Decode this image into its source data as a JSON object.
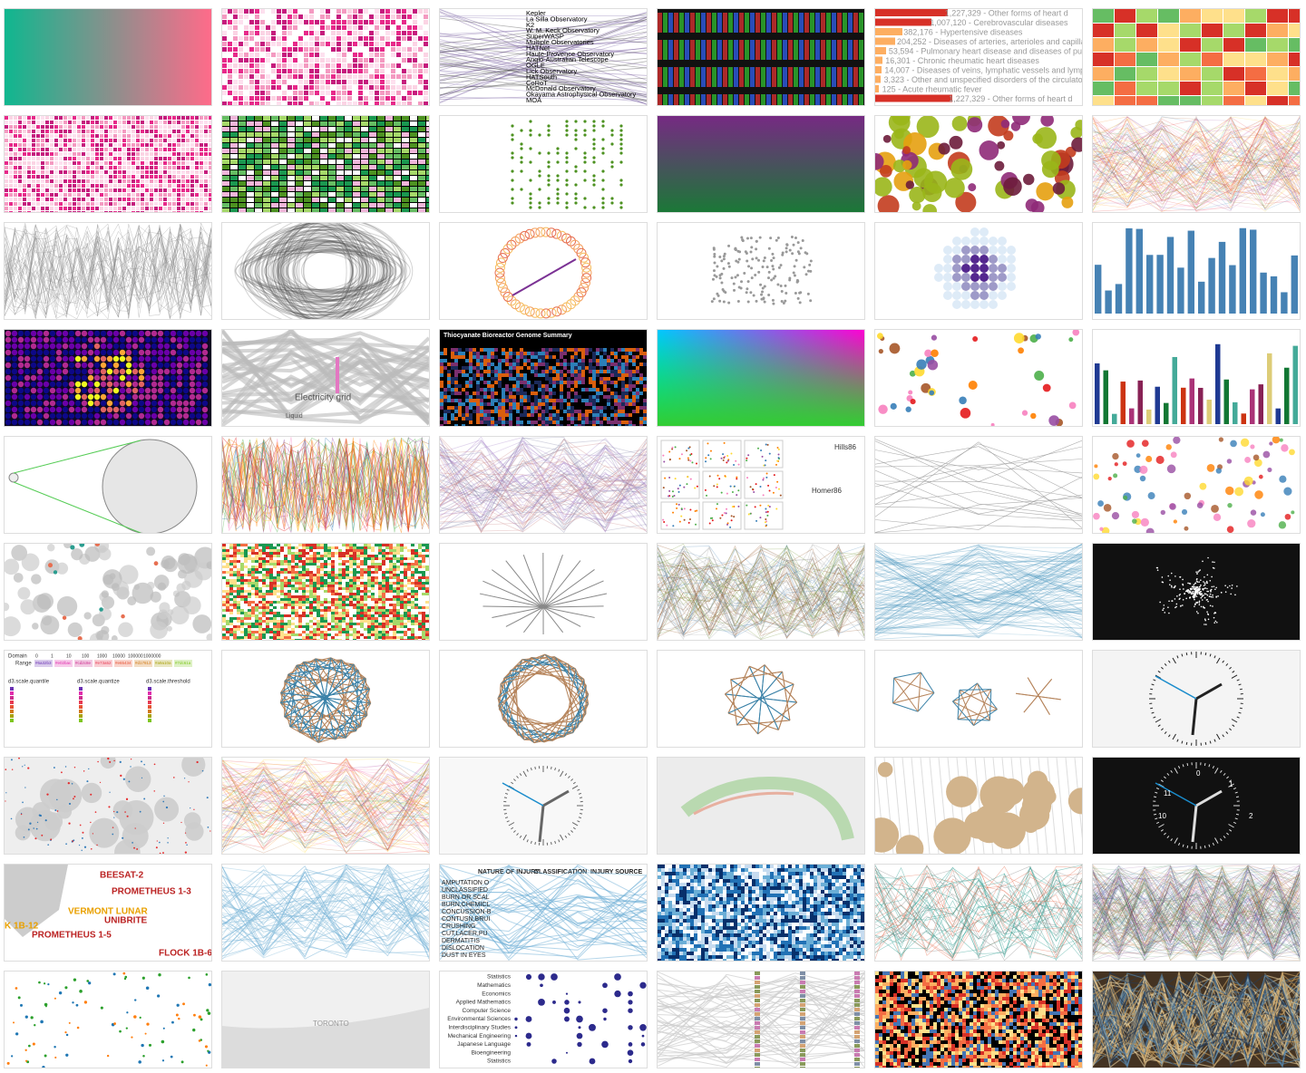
{
  "observatories": [
    "Kepler",
    "La Silla Observatory",
    "K2",
    "W. M. Keck Observatory",
    "SuperWASP",
    "Multiple Observatories",
    "HATNet",
    "Haute-Provence Observatory",
    "Anglo-Australian Telescope",
    "OGLE",
    "Lick Observatory",
    "HATSouth",
    "CoRoT",
    "McDonald Observatory",
    "Okayama Astrophysical Observatory",
    "MOA"
  ],
  "heart_diseases": [
    "1,227,329 - Other forms of heart d",
    "1,007,120 - Cerebrovascular diseases",
    "382,176 - Hypertensive diseases",
    "204,252 - Diseases of arteries, arterioles and capilla",
    "53,594 - Pulmonary heart disease and diseases of pul",
    "16,301 - Chronic rheumatic heart diseases",
    "14,007 - Diseases of veins, lymphatic vessels and lymp",
    "3,323 - Other and unspecified disorders of the circulato",
    "125 - Acute rheumatic fever",
    "1,227,329 - Other forms of heart d"
  ],
  "sankey_labels": [
    "Electricity grid",
    "Liquid"
  ],
  "genome_title": "Thiocyanate Bioreactor Genome Summary",
  "splom_labels": [
    "Hills86",
    "Homer86"
  ],
  "scales": {
    "domain_label": "Domain",
    "domain": [
      "0",
      "1",
      "10",
      "100",
      "1000",
      "10000",
      "100000",
      "1000000"
    ],
    "range_label": "Range",
    "range": [
      "#6a32b3",
      "#e02bac",
      "#cd2c8e",
      "#e73a52",
      "#e65434",
      "#d17813",
      "#a9a10a",
      "#7dc61a"
    ],
    "names": [
      "d3.scale.quantile",
      "d3.scale.quantize",
      "d3.scale.threshold"
    ]
  },
  "satellites": [
    "BEESAT-2",
    "PROMETHEUS 1-3",
    "VERMONT LUNAR",
    "UNIBRITE",
    "K 1B-12",
    "PROMETHEUS 1-5",
    "FLOCK 1B-6"
  ],
  "injury": {
    "headers": [
      "NATURE OF INJURY",
      "CLASSIFICATION",
      "INJURY SOURCE"
    ],
    "items": [
      "AMPUTATION O",
      "UNCLASSIFIED",
      "BURN OR SCAL",
      "BURN,CHEMICL",
      "CONCUSSION-B",
      "CONTUSN,BRUI",
      "CRUSHING",
      "CUT,LACER,PU",
      "DERMATITIS",
      "DISLOCATION",
      "DUST IN EYES"
    ]
  },
  "clock_numbers": [
    "0",
    "1",
    "2",
    "10",
    "11"
  ],
  "map_label": "TORONTO",
  "majors": [
    "Statistics",
    "Mathematics",
    "Economics",
    "Applied Mathematics",
    "Computer Science",
    "Environmental Sciences",
    "Interdisciplinary Studies",
    "Mechanical Engineering",
    "Japanese Language",
    "Bioengineering",
    "Statistics"
  ]
}
